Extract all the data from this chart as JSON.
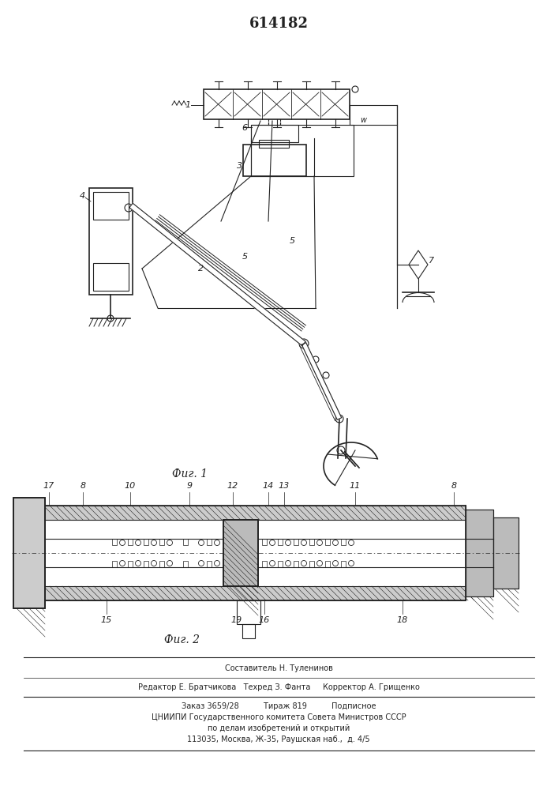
{
  "title": "614182",
  "fig1_label": "Фиг. 1",
  "fig2_label": "Фиг. 2",
  "footer_line1": "Составитель Н. Туленинов",
  "footer_line2": "Редактор Е. Братчикова   Техред З. Фанта     Корректор А. Грищенко",
  "footer_line3": "Заказ 3659/28          Тираж 819          Подписное",
  "footer_line4": "ЦНИИПИ Государственного комитета Совета Министров СССР",
  "footer_line5": "по делам изобретений и открытий",
  "footer_line6": "113035, Москва, Ж-35, Раушская наб.,  д. 4/5",
  "bg_color": "#ffffff",
  "ink_color": "#222222"
}
